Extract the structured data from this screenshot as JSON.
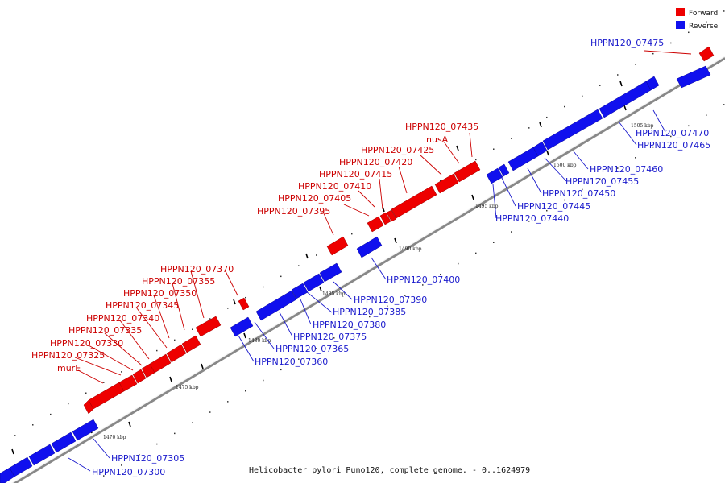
{
  "caption": "Helicobacter pylori Puno120, complete genome. - 0..1624979",
  "legend": {
    "forward_label": "Forward",
    "reverse_label": "Reverse",
    "forward_color": "#ee0000",
    "reverse_color": "#1010ee"
  },
  "ticks": [
    "1470 kbp",
    "1475 kbp",
    "1480 kbp",
    "1485 kbp",
    "1490 kbp",
    "1495 kbp",
    "1500 kbp",
    "1505 kbp"
  ],
  "forward_labels": [
    "murE",
    "HPPN120_07325",
    "HPPN120_07330",
    "HPPN120_07335",
    "HPPN120_07340",
    "HPPN120_07345",
    "HPPN120_07350",
    "HPPN120_07355",
    "HPPN120_07370",
    "HPPN120_07395",
    "HPPN120_07405",
    "HPPN120_07410",
    "HPPN120_07415",
    "HPPN120_07420",
    "HPPN120_07425",
    "nusA",
    "HPPN120_07435",
    "HPPN120_07475"
  ],
  "reverse_labels": [
    "HPPN120_07300",
    "HPPN120_07305",
    "HPPN120_07360",
    "HPPN120_07365",
    "HPPN120_07375",
    "HPPN120_07380",
    "HPPN120_07385",
    "HPPN120_07390",
    "HPPN120_07400",
    "HPPN120_07440",
    "HPPN120_07445",
    "HPPN120_07450",
    "HPPN120_07455",
    "HPPN120_07460",
    "HPPN120_07465",
    "HPPN120_07470"
  ]
}
